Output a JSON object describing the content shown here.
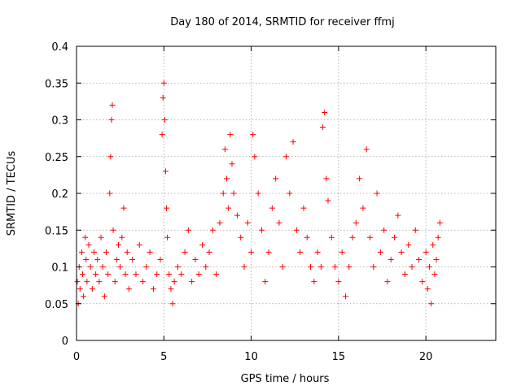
{
  "chart_data": {
    "type": "scatter",
    "title": "Day 180 of 2014, SRMTID for receiver ffmj",
    "xlabel": "GPS time / hours",
    "ylabel": "SRMTID / TECUs",
    "xlim": [
      0,
      24
    ],
    "ylim": [
      0,
      0.4
    ],
    "xticks": [
      0,
      5,
      10,
      15,
      20
    ],
    "yticks": [
      0,
      0.05,
      0.1,
      0.15,
      0.2,
      0.25,
      0.3,
      0.35,
      0.4
    ],
    "ytick_labels": [
      "0",
      "0.05",
      "0.1",
      "0.15",
      "0.2",
      "0.25",
      "0.3",
      "0.35",
      "0.4"
    ],
    "xtick_labels": [
      "0",
      "5",
      "10",
      "15",
      "20"
    ],
    "grid": true,
    "marker": "+",
    "color": "#ff0000",
    "series": [
      {
        "x": [
          0.05,
          0.1,
          0.15,
          0.2,
          0.3,
          0.35,
          0.4,
          0.5,
          0.55,
          0.6,
          0.7,
          0.8,
          0.9,
          1.0,
          1.1,
          1.2,
          1.3,
          1.4,
          1.5,
          1.6,
          1.7,
          1.8,
          1.9,
          1.95,
          2.0,
          2.05,
          2.1,
          2.2,
          2.3,
          2.4,
          2.5,
          2.6,
          2.7,
          2.8,
          2.9,
          3.0,
          3.2,
          3.4,
          3.6,
          3.8,
          4.0,
          4.2,
          4.4,
          4.6,
          4.8,
          4.9,
          4.95,
          5.0,
          5.05,
          5.1,
          5.15,
          5.2,
          5.3,
          5.4,
          5.5,
          5.6,
          5.8,
          6.0,
          6.2,
          6.4,
          6.6,
          6.8,
          7.0,
          7.2,
          7.4,
          7.6,
          7.8,
          8.0,
          8.2,
          8.4,
          8.5,
          8.6,
          8.7,
          8.8,
          8.9,
          9.0,
          9.2,
          9.4,
          9.6,
          9.8,
          10.0,
          10.1,
          10.2,
          10.4,
          10.6,
          10.8,
          11.0,
          11.2,
          11.4,
          11.6,
          11.8,
          12.0,
          12.2,
          12.4,
          12.6,
          12.8,
          13.0,
          13.2,
          13.4,
          13.6,
          13.8,
          14.0,
          14.1,
          14.2,
          14.3,
          14.4,
          14.6,
          14.8,
          15.0,
          15.2,
          15.4,
          15.6,
          15.8,
          16.0,
          16.2,
          16.4,
          16.6,
          16.8,
          17.0,
          17.2,
          17.4,
          17.6,
          17.8,
          18.0,
          18.2,
          18.4,
          18.6,
          18.8,
          19.0,
          19.2,
          19.4,
          19.6,
          19.8,
          20.0,
          20.1,
          20.2,
          20.3,
          20.4,
          20.5,
          20.6,
          20.7,
          20.8
        ],
        "y": [
          0.08,
          0.05,
          0.1,
          0.07,
          0.12,
          0.09,
          0.06,
          0.14,
          0.11,
          0.08,
          0.13,
          0.1,
          0.07,
          0.12,
          0.09,
          0.11,
          0.08,
          0.14,
          0.1,
          0.06,
          0.12,
          0.09,
          0.2,
          0.25,
          0.3,
          0.32,
          0.15,
          0.08,
          0.11,
          0.13,
          0.1,
          0.14,
          0.18,
          0.09,
          0.12,
          0.07,
          0.11,
          0.09,
          0.13,
          0.08,
          0.1,
          0.12,
          0.07,
          0.09,
          0.11,
          0.28,
          0.33,
          0.35,
          0.3,
          0.23,
          0.18,
          0.14,
          0.09,
          0.07,
          0.05,
          0.08,
          0.1,
          0.09,
          0.12,
          0.15,
          0.08,
          0.11,
          0.09,
          0.13,
          0.1,
          0.12,
          0.15,
          0.09,
          0.16,
          0.2,
          0.26,
          0.22,
          0.18,
          0.28,
          0.24,
          0.2,
          0.17,
          0.14,
          0.1,
          0.16,
          0.12,
          0.28,
          0.25,
          0.2,
          0.15,
          0.08,
          0.12,
          0.18,
          0.22,
          0.16,
          0.1,
          0.25,
          0.2,
          0.27,
          0.15,
          0.12,
          0.18,
          0.14,
          0.1,
          0.08,
          0.12,
          0.1,
          0.29,
          0.31,
          0.22,
          0.19,
          0.14,
          0.1,
          0.08,
          0.12,
          0.06,
          0.1,
          0.14,
          0.16,
          0.22,
          0.18,
          0.26,
          0.14,
          0.1,
          0.2,
          0.12,
          0.15,
          0.08,
          0.11,
          0.14,
          0.17,
          0.12,
          0.09,
          0.13,
          0.1,
          0.15,
          0.11,
          0.08,
          0.12,
          0.07,
          0.1,
          0.05,
          0.13,
          0.09,
          0.11,
          0.14,
          0.16
        ]
      }
    ]
  }
}
